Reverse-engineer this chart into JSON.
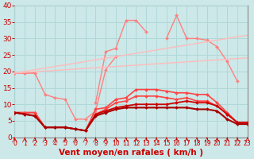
{
  "x": [
    0,
    1,
    2,
    3,
    4,
    5,
    6,
    7,
    8,
    9,
    10,
    11,
    12,
    13,
    14,
    15,
    16,
    17,
    18,
    19,
    20,
    21,
    22,
    23
  ],
  "series": [
    {
      "label": "line1_salmon_peaked",
      "color": "#ff8080",
      "lw": 1.0,
      "marker": "D",
      "markersize": 2.0,
      "y": [
        19.5,
        19.5,
        19.5,
        null,
        null,
        null,
        null,
        null,
        10.5,
        26.0,
        27.0,
        35.5,
        35.5,
        32.0,
        null,
        30.0,
        37.0,
        30.0,
        30.0,
        29.5,
        27.5,
        23.0,
        17.0,
        null
      ]
    },
    {
      "label": "line2_salmon_lower_peaked",
      "color": "#ff8080",
      "lw": 1.0,
      "marker": "D",
      "markersize": 2.0,
      "y": [
        19.5,
        19.5,
        19.5,
        13.0,
        12.0,
        11.5,
        5.5,
        5.5,
        8.0,
        20.5,
        24.5,
        null,
        null,
        null,
        null,
        null,
        null,
        null,
        null,
        null,
        null,
        null,
        null,
        null
      ]
    },
    {
      "label": "line3_light_trend_upper",
      "color": "#ffbbbb",
      "lw": 1.0,
      "marker": null,
      "markersize": 0,
      "y": [
        19.5,
        20.0,
        20.5,
        21.0,
        21.5,
        22.0,
        22.5,
        23.0,
        23.5,
        24.0,
        24.5,
        25.0,
        25.5,
        26.0,
        26.5,
        27.0,
        27.5,
        28.0,
        28.5,
        29.0,
        29.5,
        30.0,
        30.5,
        31.0
      ]
    },
    {
      "label": "line4_light_trend_lower",
      "color": "#ffbbbb",
      "lw": 1.0,
      "marker": null,
      "markersize": 0,
      "y": [
        19.5,
        19.7,
        19.9,
        20.1,
        20.3,
        20.5,
        20.7,
        20.9,
        21.1,
        21.3,
        21.5,
        21.7,
        21.9,
        22.1,
        22.3,
        22.5,
        22.7,
        22.9,
        23.1,
        23.3,
        23.5,
        23.7,
        23.9,
        24.1
      ]
    },
    {
      "label": "line5_red_arched_upper",
      "color": "#ff4444",
      "lw": 1.2,
      "marker": "D",
      "markersize": 2.0,
      "y": [
        7.5,
        7.5,
        7.5,
        3.0,
        3.0,
        3.0,
        2.5,
        2.0,
        8.5,
        9.0,
        11.5,
        12.0,
        14.5,
        14.5,
        14.5,
        14.0,
        13.5,
        13.5,
        13.0,
        13.0,
        10.5,
        7.5,
        4.5,
        4.5
      ]
    },
    {
      "label": "line6_red_arched_lower",
      "color": "#ff4444",
      "lw": 1.2,
      "marker": "D",
      "markersize": 2.0,
      "y": [
        7.5,
        7.5,
        7.5,
        3.0,
        3.0,
        3.0,
        2.5,
        2.0,
        7.0,
        8.5,
        10.5,
        11.0,
        12.5,
        12.5,
        12.5,
        12.0,
        11.5,
        12.0,
        11.0,
        11.0,
        9.5,
        7.0,
        4.5,
        4.5
      ]
    },
    {
      "label": "line7_darkred_flat_upper",
      "color": "#cc0000",
      "lw": 1.3,
      "marker": "D",
      "markersize": 2.0,
      "y": [
        7.5,
        7.0,
        6.5,
        3.0,
        3.0,
        3.0,
        2.5,
        2.0,
        7.0,
        8.0,
        9.0,
        9.5,
        10.0,
        10.0,
        10.0,
        10.0,
        10.5,
        11.0,
        10.5,
        10.5,
        9.5,
        7.0,
        4.5,
        4.5
      ]
    },
    {
      "label": "line8_darkred_flat_lower",
      "color": "#aa0000",
      "lw": 1.5,
      "marker": "D",
      "markersize": 2.0,
      "y": [
        7.5,
        7.0,
        6.5,
        3.0,
        3.0,
        3.0,
        2.5,
        2.0,
        6.5,
        7.5,
        8.5,
        9.0,
        9.0,
        9.0,
        9.0,
        9.0,
        9.0,
        9.0,
        8.5,
        8.5,
        8.0,
        5.5,
        4.0,
        4.0
      ]
    }
  ],
  "xlim": [
    0,
    23
  ],
  "ylim": [
    0,
    40
  ],
  "yticks": [
    0,
    5,
    10,
    15,
    20,
    25,
    30,
    35,
    40
  ],
  "xticks": [
    0,
    1,
    2,
    3,
    4,
    5,
    6,
    7,
    8,
    9,
    10,
    11,
    12,
    13,
    14,
    15,
    16,
    17,
    18,
    19,
    20,
    21,
    22,
    23
  ],
  "xlabel": "Vent moyen/en rafales ( km/h )",
  "bg_color": "#cce8e8",
  "grid_color": "#aad4d4",
  "tick_color": "#cc0000",
  "xlabel_color": "#cc0000",
  "xlabel_fontsize": 7.5,
  "ytick_fontsize": 6.5,
  "xtick_fontsize": 5.5,
  "spine_color": "#888888",
  "figw": 3.2,
  "figh": 2.0,
  "dpi": 100
}
